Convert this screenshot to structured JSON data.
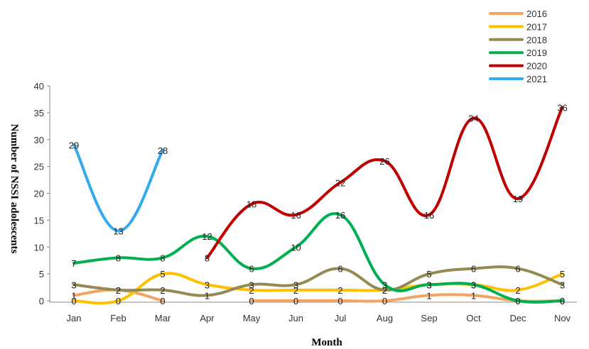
{
  "chart_data": {
    "type": "line",
    "xlabel": "Month",
    "ylabel": "Number of NSSI adolescents",
    "ylim": [
      0,
      40
    ],
    "yticks": [
      0,
      5,
      10,
      15,
      20,
      25,
      30,
      35,
      40
    ],
    "categories": [
      "Jan",
      "Feb",
      "Mar",
      "Apr",
      "May",
      "Jun",
      "Jul",
      "Aug",
      "Sep",
      "Oct",
      "Dec",
      "Nov"
    ],
    "grid": false,
    "legend_position": "top-right",
    "series": [
      {
        "name": "2016",
        "color": "#f4a460",
        "values": [
          1,
          2,
          0,
          null,
          0,
          0,
          0,
          0,
          1,
          1,
          0,
          0
        ]
      },
      {
        "name": "2017",
        "color": "#ffc000",
        "values": [
          0,
          0,
          5,
          3,
          2,
          2,
          2,
          2,
          3,
          3,
          2,
          5
        ]
      },
      {
        "name": "2018",
        "color": "#948a54",
        "values": [
          3,
          2,
          2,
          1,
          3,
          3,
          6,
          2,
          5,
          6,
          6,
          3
        ]
      },
      {
        "name": "2019",
        "color": "#00b050",
        "values": [
          7,
          8,
          8,
          12,
          6,
          10,
          16,
          3,
          3,
          3,
          0,
          0
        ]
      },
      {
        "name": "2020",
        "color": "#c00000",
        "values": [
          null,
          null,
          null,
          8,
          18,
          16,
          22,
          26,
          16,
          34,
          19,
          36
        ]
      },
      {
        "name": "2021",
        "color": "#33aaee",
        "values": [
          29,
          13,
          28,
          null,
          null,
          null,
          null,
          null,
          null,
          null,
          null,
          null
        ]
      }
    ]
  }
}
